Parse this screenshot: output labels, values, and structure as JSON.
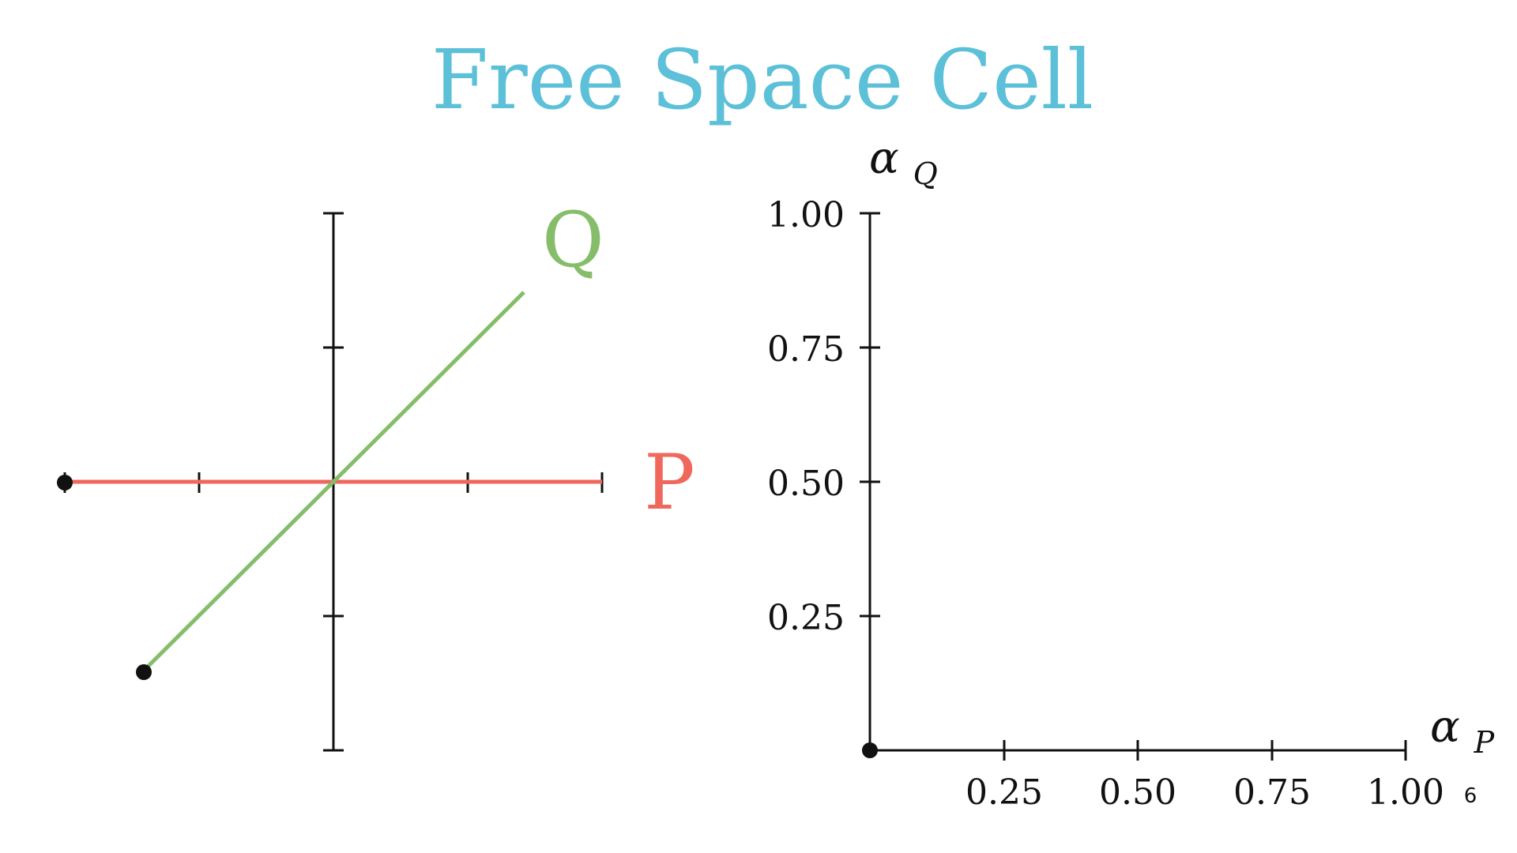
{
  "title": {
    "text": "Free Space Cell",
    "color": "#5bc0d8"
  },
  "left_diagram": {
    "segment_p": {
      "label": "P",
      "color": "#f0675c"
    },
    "segment_q": {
      "label": "Q",
      "color": "#85bd6a"
    }
  },
  "right_plot": {
    "x_axis": {
      "label": "α",
      "subscript": "P",
      "ticks": [
        "0.25",
        "0.50",
        "0.75",
        "1.00"
      ]
    },
    "y_axis": {
      "label": "α",
      "subscript": "Q",
      "ticks": [
        "0.25",
        "0.50",
        "0.75",
        "1.00"
      ]
    },
    "point": {
      "x": 0,
      "y": 0
    }
  },
  "page_number": "6"
}
